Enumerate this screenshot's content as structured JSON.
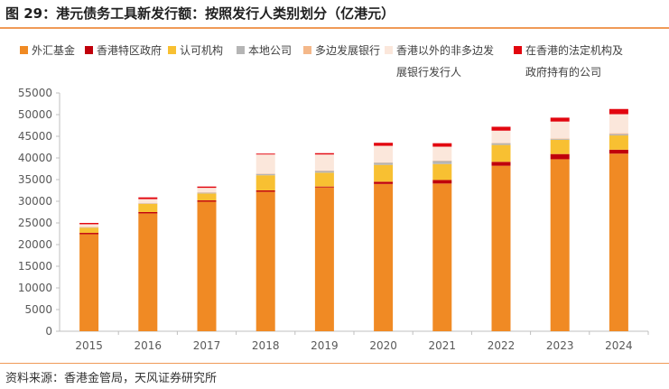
{
  "header": {
    "title": "图 29：港元债务工具新发行额：按照发行人类别划分（亿港元）"
  },
  "footer": {
    "source": "资料来源：香港金管局，天风证券研究所"
  },
  "chart_data": {
    "type": "bar",
    "stacked": true,
    "title": "图 29：港元债务工具新发行额：按照发行人类别划分（亿港元）",
    "xlabel": "",
    "ylabel": "",
    "ylim": [
      0,
      55000
    ],
    "yticks": [
      0,
      5000,
      10000,
      15000,
      20000,
      25000,
      30000,
      35000,
      40000,
      45000,
      50000,
      55000
    ],
    "grid": false,
    "legend_position": "top",
    "categories": [
      "2015",
      "2016",
      "2017",
      "2018",
      "2019",
      "2020",
      "2021",
      "2022",
      "2023",
      "2024"
    ],
    "series": [
      {
        "name": "外汇基金",
        "color": "#F08A24",
        "values": [
          22400,
          27200,
          29900,
          32200,
          33200,
          34000,
          34100,
          38200,
          39700,
          41000
        ]
      },
      {
        "name": "香港特区政府",
        "color": "#C0000B",
        "values": [
          300,
          300,
          300,
          300,
          200,
          500,
          800,
          900,
          1200,
          900
        ]
      },
      {
        "name": "认可机构",
        "color": "#F8C032",
        "values": [
          1200,
          1900,
          1600,
          3500,
          3200,
          3900,
          3700,
          3900,
          3300,
          3300
        ]
      },
      {
        "name": "本地公司",
        "color": "#B5B5B5",
        "values": [
          100,
          100,
          200,
          300,
          400,
          500,
          700,
          400,
          200,
          300
        ]
      },
      {
        "name": "多边发展银行",
        "color": "#F4B88A",
        "values": [
          50,
          50,
          50,
          100,
          100,
          100,
          100,
          100,
          100,
          200
        ]
      },
      {
        "name": "香港以外的非多边发展银行发行人",
        "color": "#FBE7DB",
        "values": [
          650,
          950,
          1050,
          4400,
          3700,
          3800,
          3200,
          2800,
          3900,
          4400
        ]
      },
      {
        "name": "在香港的法定机构及政府持有的公司",
        "color": "#E2060F",
        "values": [
          300,
          400,
          300,
          200,
          300,
          700,
          800,
          900,
          900,
          1200
        ]
      }
    ]
  }
}
